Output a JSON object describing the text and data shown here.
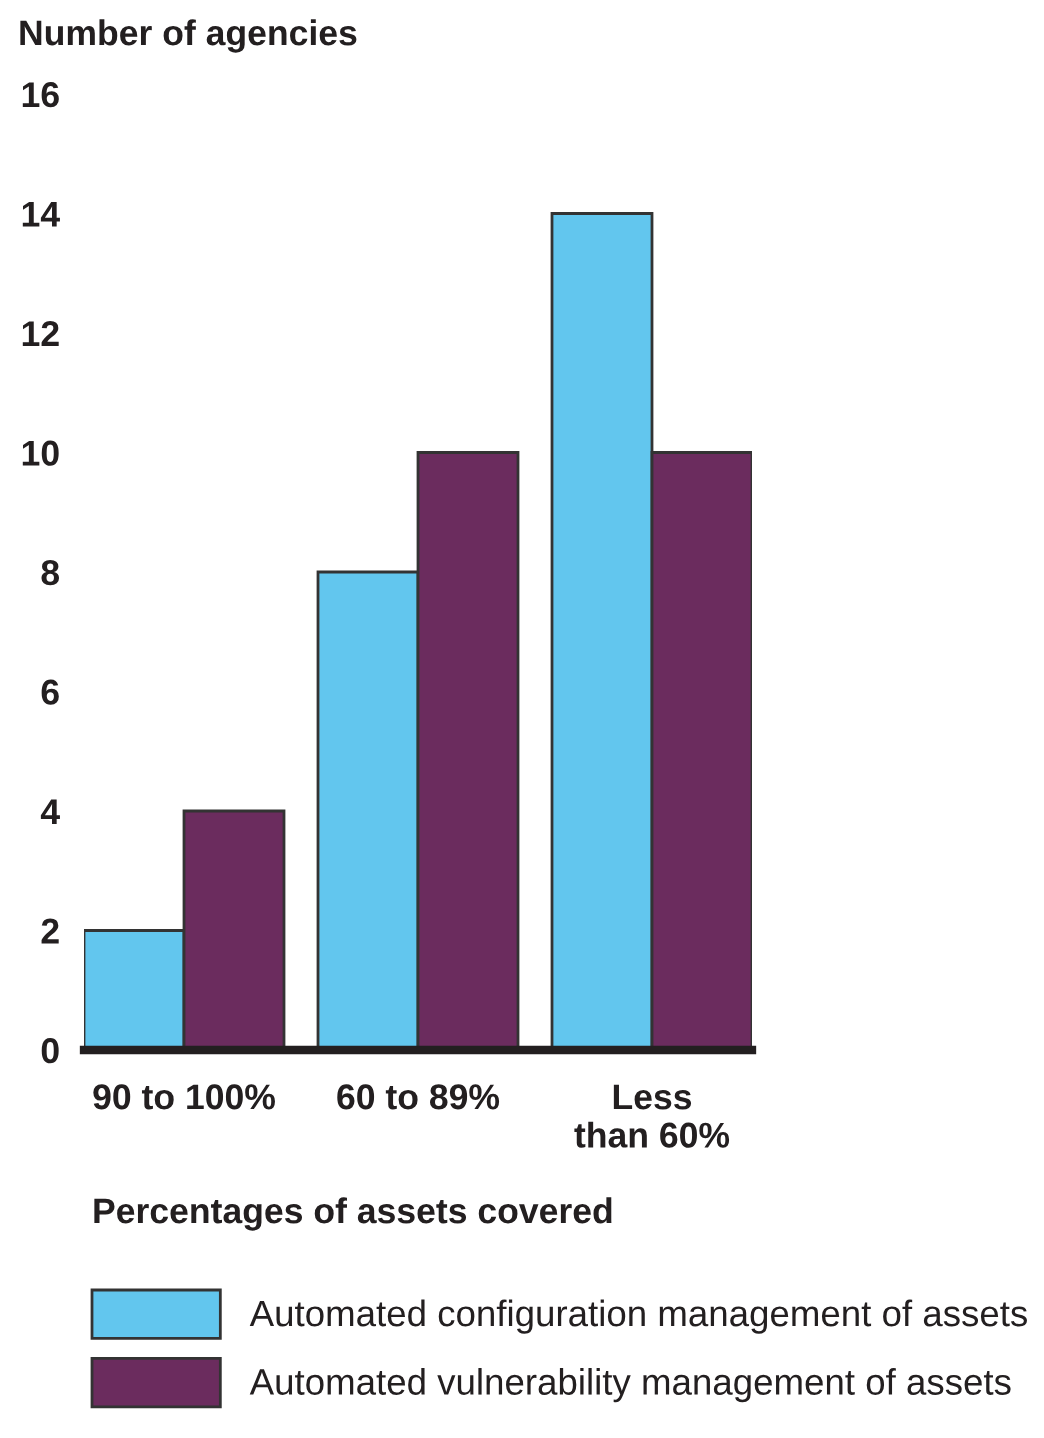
{
  "chart_data": {
    "type": "bar",
    "ylabel": "Number of agencies",
    "xlabel": "Percentages of assets covered",
    "categories": [
      "90 to 100%",
      "60 to 89%",
      "Less\nthan 60%"
    ],
    "series": [
      {
        "name": "Automated configuration management of assets",
        "color": "#62c6ee",
        "values": [
          2,
          8,
          14
        ]
      },
      {
        "name": "Automated vulnerability management of assets",
        "color": "#6b2c5e",
        "values": [
          4,
          10,
          10
        ]
      }
    ],
    "ylim": [
      0,
      16
    ],
    "yticks": [
      0,
      2,
      4,
      6,
      8,
      10,
      12,
      14,
      16
    ],
    "grid": false,
    "legend": "bottom"
  }
}
